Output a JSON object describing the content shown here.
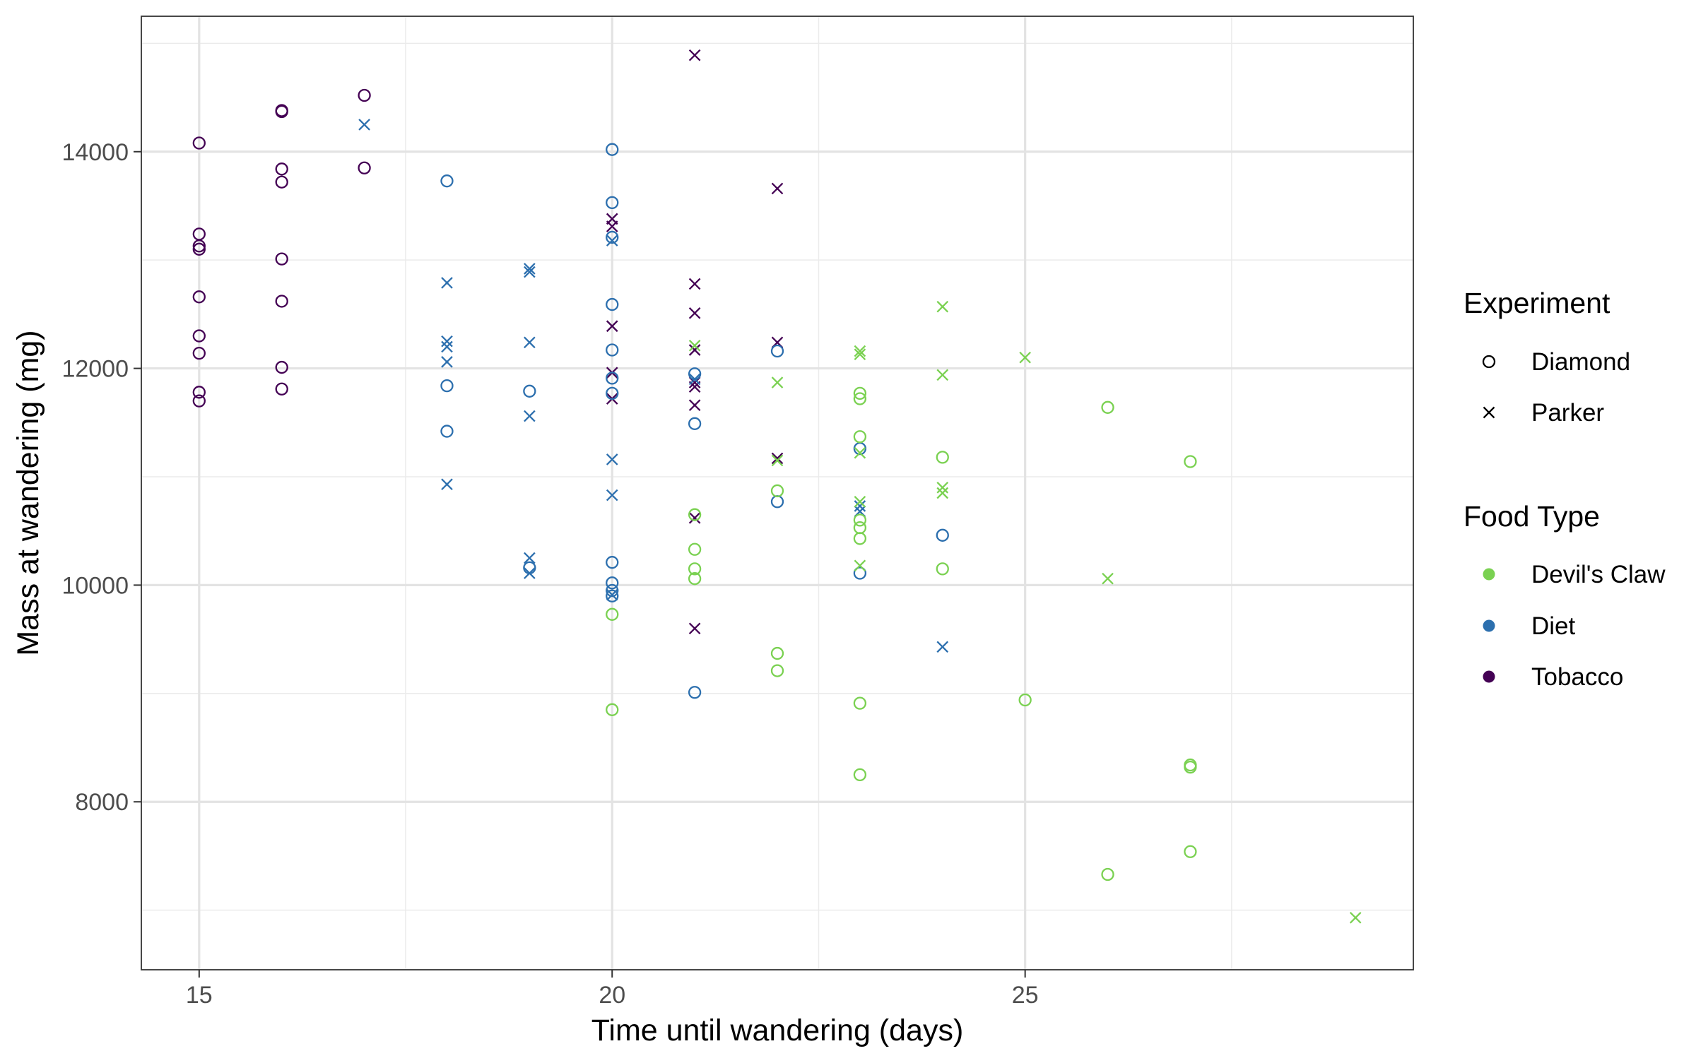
{
  "chart_data": {
    "type": "scatter",
    "title": "",
    "xlabel": "Time until wandering (days)",
    "ylabel": "Mass at wandering (mg)",
    "xlim": [
      14.3,
      29.7
    ],
    "ylim": [
      6450,
      15250
    ],
    "x_ticks": [
      15,
      20,
      25
    ],
    "x_tick_labels": [
      "15",
      "20",
      "25"
    ],
    "x_minor_ticks": [
      17.5,
      22.5,
      27.5
    ],
    "y_ticks": [
      8000,
      10000,
      12000,
      14000
    ],
    "y_tick_labels": [
      "8000",
      "10000",
      "12000",
      "14000"
    ],
    "y_minor_ticks": [
      7000,
      9000,
      11000,
      13000,
      15000
    ],
    "grid": true,
    "legend_position": "right",
    "legends": {
      "shape": {
        "title": "Experiment",
        "entries": [
          {
            "label": "Diamond",
            "shape": "circle"
          },
          {
            "label": "Parker",
            "shape": "cross"
          }
        ]
      },
      "color": {
        "title": "Food Type",
        "entries": [
          {
            "label": "Devil's Claw",
            "color": "#7AD151"
          },
          {
            "label": "Diet",
            "color": "#2C6FAE"
          },
          {
            "label": "Tobacco",
            "color": "#440154"
          }
        ]
      }
    },
    "series": [
      {
        "food": "Tobacco",
        "experiment": "Diamond",
        "color": "#440154",
        "shape": "circle",
        "points": [
          [
            15,
            14080
          ],
          [
            15,
            13240
          ],
          [
            15,
            13130
          ],
          [
            15,
            13100
          ],
          [
            15,
            12660
          ],
          [
            15,
            12300
          ],
          [
            15,
            12140
          ],
          [
            15,
            11780
          ],
          [
            15,
            11700
          ],
          [
            16,
            14380
          ],
          [
            16,
            14370
          ],
          [
            16,
            13840
          ],
          [
            16,
            13720
          ],
          [
            16,
            13010
          ],
          [
            16,
            12620
          ],
          [
            16,
            12010
          ],
          [
            16,
            11810
          ],
          [
            17,
            14520
          ],
          [
            17,
            13850
          ]
        ]
      },
      {
        "food": "Tobacco",
        "experiment": "Parker",
        "color": "#440154",
        "shape": "cross",
        "points": [
          [
            20,
            13380
          ],
          [
            20,
            13310
          ],
          [
            20,
            12390
          ],
          [
            20,
            11960
          ],
          [
            20,
            11720
          ],
          [
            21,
            14890
          ],
          [
            21,
            12780
          ],
          [
            21,
            12510
          ],
          [
            21,
            12170
          ],
          [
            21,
            11870
          ],
          [
            21,
            11830
          ],
          [
            21,
            11660
          ],
          [
            21,
            10620
          ],
          [
            21,
            9600
          ],
          [
            22,
            13660
          ],
          [
            22,
            12240
          ],
          [
            22,
            11170
          ]
        ]
      },
      {
        "food": "Diet",
        "experiment": "Diamond",
        "color": "#2C6FAE",
        "shape": "circle",
        "points": [
          [
            18,
            13730
          ],
          [
            18,
            11840
          ],
          [
            18,
            11420
          ],
          [
            19,
            11790
          ],
          [
            19,
            10160
          ],
          [
            20,
            14020
          ],
          [
            20,
            13530
          ],
          [
            20,
            13210
          ],
          [
            20,
            12590
          ],
          [
            20,
            12170
          ],
          [
            20,
            11910
          ],
          [
            20,
            11770
          ],
          [
            20,
            10210
          ],
          [
            20,
            10020
          ],
          [
            20,
            9950
          ],
          [
            20,
            9900
          ],
          [
            21,
            11950
          ],
          [
            21,
            11490
          ],
          [
            21,
            9010
          ],
          [
            22,
            12160
          ],
          [
            22,
            10770
          ],
          [
            23,
            11260
          ],
          [
            23,
            10110
          ],
          [
            24,
            10460
          ]
        ]
      },
      {
        "food": "Diet",
        "experiment": "Parker",
        "color": "#2C6FAE",
        "shape": "cross",
        "points": [
          [
            17,
            14250
          ],
          [
            18,
            12790
          ],
          [
            18,
            12250
          ],
          [
            18,
            12200
          ],
          [
            18,
            12060
          ],
          [
            18,
            10930
          ],
          [
            19,
            12920
          ],
          [
            19,
            12890
          ],
          [
            19,
            12240
          ],
          [
            19,
            11560
          ],
          [
            19,
            10250
          ],
          [
            19,
            10110
          ],
          [
            20,
            13180
          ],
          [
            20,
            11160
          ],
          [
            20,
            10830
          ],
          [
            20,
            9910
          ],
          [
            21,
            11900
          ],
          [
            23,
            10730
          ],
          [
            23,
            10680
          ],
          [
            24,
            9430
          ]
        ]
      },
      {
        "food": "Devil's Claw",
        "experiment": "Diamond",
        "color": "#7AD151",
        "shape": "circle",
        "points": [
          [
            20,
            9730
          ],
          [
            20,
            8850
          ],
          [
            21,
            10650
          ],
          [
            21,
            10330
          ],
          [
            21,
            10150
          ],
          [
            21,
            10060
          ],
          [
            22,
            10870
          ],
          [
            22,
            9370
          ],
          [
            22,
            9210
          ],
          [
            23,
            11770
          ],
          [
            23,
            11720
          ],
          [
            23,
            11370
          ],
          [
            23,
            10600
          ],
          [
            23,
            10530
          ],
          [
            23,
            10430
          ],
          [
            23,
            8910
          ],
          [
            23,
            8250
          ],
          [
            24,
            11180
          ],
          [
            24,
            10150
          ],
          [
            25,
            8940
          ],
          [
            26,
            11640
          ],
          [
            26,
            7330
          ],
          [
            27,
            11140
          ],
          [
            27,
            8340
          ],
          [
            27,
            8320
          ],
          [
            27,
            7540
          ]
        ]
      },
      {
        "food": "Devil's Claw",
        "experiment": "Parker",
        "color": "#7AD151",
        "shape": "cross",
        "points": [
          [
            21,
            12210
          ],
          [
            22,
            11870
          ],
          [
            22,
            11150
          ],
          [
            23,
            12160
          ],
          [
            23,
            12130
          ],
          [
            23,
            11220
          ],
          [
            23,
            10770
          ],
          [
            23,
            10180
          ],
          [
            24,
            12570
          ],
          [
            24,
            11940
          ],
          [
            24,
            10900
          ],
          [
            24,
            10850
          ],
          [
            25,
            12100
          ],
          [
            26,
            10060
          ],
          [
            29,
            6930
          ]
        ]
      }
    ]
  }
}
